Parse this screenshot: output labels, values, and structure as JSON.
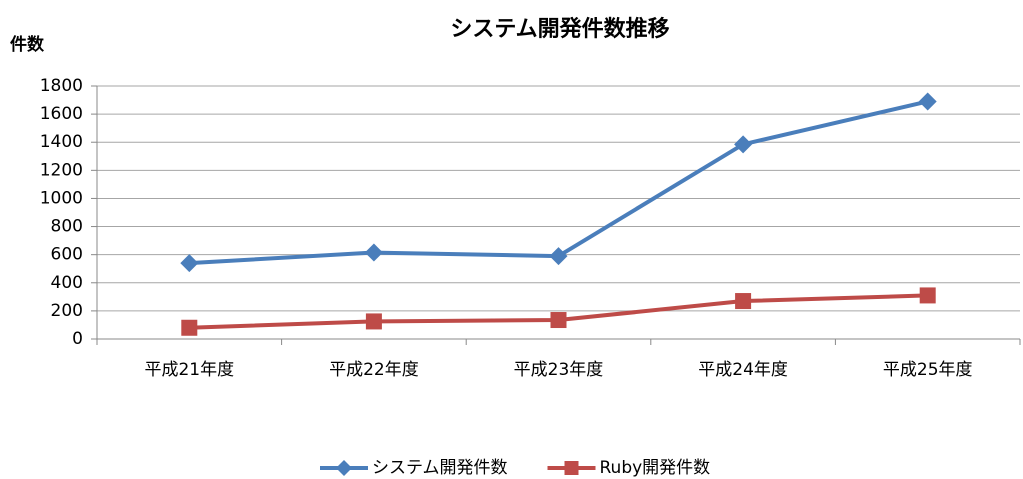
{
  "chart_data": {
    "type": "line",
    "title": "システム開発件数推移",
    "y_label": "件数",
    "categories": [
      "平成21年度",
      "平成22年度",
      "平成23年度",
      "平成24年度",
      "平成25年度"
    ],
    "series": [
      {
        "name": "システム開発件数",
        "color": "#4a7ebb",
        "marker": "diamond",
        "values": [
          540,
          615,
          590,
          1385,
          1690
        ]
      },
      {
        "name": "Ruby開発件数",
        "color": "#be4b48",
        "marker": "square",
        "values": [
          80,
          125,
          135,
          270,
          310
        ]
      }
    ],
    "ylim": [
      0,
      1800
    ],
    "yticks": [
      0,
      200,
      400,
      600,
      800,
      1000,
      1200,
      1400,
      1600,
      1800
    ],
    "grid": true,
    "legend": "bottom"
  }
}
